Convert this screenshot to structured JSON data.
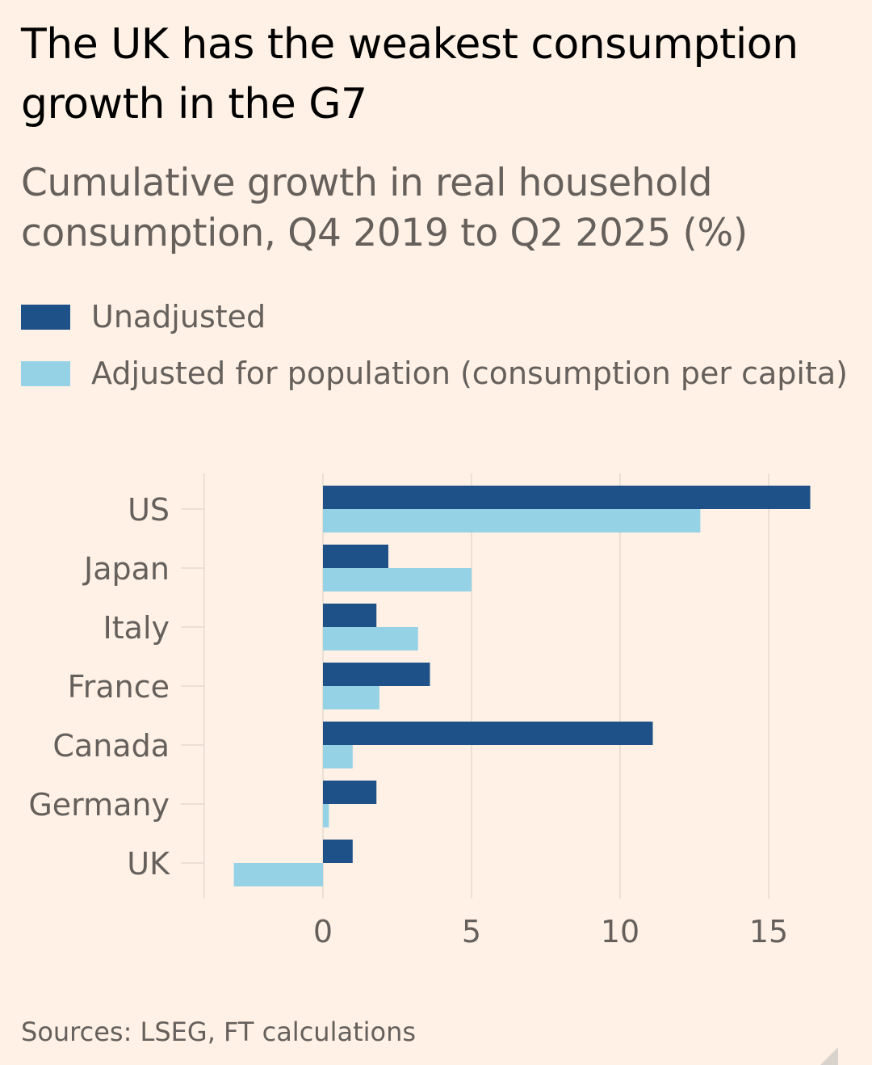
{
  "chart_data": {
    "type": "bar",
    "orientation": "horizontal",
    "title": "The UK has the weakest consumption growth in the G7",
    "subtitle": "Cumulative growth in real household consumption, Q4 2019 to Q2 2025 (%)",
    "categories": [
      "US",
      "Japan",
      "Italy",
      "France",
      "Canada",
      "Germany",
      "UK"
    ],
    "series": [
      {
        "name": "Unadjusted",
        "color": "#1f5189",
        "values": [
          16.4,
          2.2,
          1.8,
          3.6,
          11.1,
          1.8,
          1.0
        ]
      },
      {
        "name": "Adjusted for population (consumption per capita)",
        "color": "#96d2e6",
        "values": [
          12.7,
          5.0,
          3.2,
          1.9,
          1.0,
          0.2,
          -3.0
        ]
      }
    ],
    "xlim": [
      -4,
      17
    ],
    "xticks": [
      0,
      5,
      10,
      15
    ],
    "xtick_labels": [
      "0",
      "5",
      "10",
      "15"
    ],
    "grid": true,
    "legend_position": "top-left",
    "source": "Sources: LSEG, FT calculations"
  }
}
